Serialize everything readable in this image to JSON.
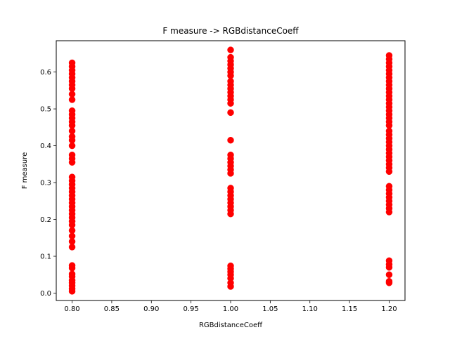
{
  "chart_data": {
    "type": "scatter",
    "title": "F measure -> RGBdistanceCoeff",
    "xlabel": "RGBdistanceCoeff",
    "ylabel": "F measure",
    "xlim": [
      0.78,
      1.22
    ],
    "ylim": [
      -0.02,
      0.685
    ],
    "x_ticks": [
      "0.80",
      "0.85",
      "0.90",
      "0.95",
      "1.00",
      "1.05",
      "1.10",
      "1.15",
      "1.20"
    ],
    "y_ticks": [
      "0.0",
      "0.1",
      "0.2",
      "0.3",
      "0.4",
      "0.5",
      "0.6"
    ],
    "grid": false,
    "marker_color": "#ff0000",
    "series": [
      {
        "points": [
          [
            0.8,
            0.005
          ],
          [
            0.8,
            0.012
          ],
          [
            0.8,
            0.02
          ],
          [
            0.8,
            0.028
          ],
          [
            0.8,
            0.035
          ],
          [
            0.8,
            0.045
          ],
          [
            0.8,
            0.052
          ],
          [
            0.8,
            0.068
          ],
          [
            0.8,
            0.075
          ],
          [
            0.8,
            0.125
          ],
          [
            0.8,
            0.14
          ],
          [
            0.8,
            0.155
          ],
          [
            0.8,
            0.17
          ],
          [
            0.8,
            0.185
          ],
          [
            0.8,
            0.195
          ],
          [
            0.8,
            0.205
          ],
          [
            0.8,
            0.215
          ],
          [
            0.8,
            0.225
          ],
          [
            0.8,
            0.235
          ],
          [
            0.8,
            0.245
          ],
          [
            0.8,
            0.255
          ],
          [
            0.8,
            0.265
          ],
          [
            0.8,
            0.275
          ],
          [
            0.8,
            0.285
          ],
          [
            0.8,
            0.295
          ],
          [
            0.8,
            0.305
          ],
          [
            0.8,
            0.315
          ],
          [
            0.8,
            0.355
          ],
          [
            0.8,
            0.365
          ],
          [
            0.8,
            0.375
          ],
          [
            0.8,
            0.4
          ],
          [
            0.8,
            0.415
          ],
          [
            0.8,
            0.425
          ],
          [
            0.8,
            0.44
          ],
          [
            0.8,
            0.455
          ],
          [
            0.8,
            0.465
          ],
          [
            0.8,
            0.475
          ],
          [
            0.8,
            0.485
          ],
          [
            0.8,
            0.495
          ],
          [
            0.8,
            0.525
          ],
          [
            0.8,
            0.54
          ],
          [
            0.8,
            0.555
          ],
          [
            0.8,
            0.565
          ],
          [
            0.8,
            0.575
          ],
          [
            0.8,
            0.585
          ],
          [
            0.8,
            0.595
          ],
          [
            0.8,
            0.605
          ],
          [
            0.8,
            0.615
          ],
          [
            0.8,
            0.625
          ],
          [
            1.0,
            0.018
          ],
          [
            1.0,
            0.028
          ],
          [
            1.0,
            0.04
          ],
          [
            1.0,
            0.05
          ],
          [
            1.0,
            0.058
          ],
          [
            1.0,
            0.066
          ],
          [
            1.0,
            0.074
          ],
          [
            1.0,
            0.215
          ],
          [
            1.0,
            0.225
          ],
          [
            1.0,
            0.235
          ],
          [
            1.0,
            0.245
          ],
          [
            1.0,
            0.255
          ],
          [
            1.0,
            0.265
          ],
          [
            1.0,
            0.275
          ],
          [
            1.0,
            0.285
          ],
          [
            1.0,
            0.325
          ],
          [
            1.0,
            0.335
          ],
          [
            1.0,
            0.345
          ],
          [
            1.0,
            0.355
          ],
          [
            1.0,
            0.365
          ],
          [
            1.0,
            0.375
          ],
          [
            1.0,
            0.415
          ],
          [
            1.0,
            0.49
          ],
          [
            1.0,
            0.515
          ],
          [
            1.0,
            0.525
          ],
          [
            1.0,
            0.535
          ],
          [
            1.0,
            0.545
          ],
          [
            1.0,
            0.555
          ],
          [
            1.0,
            0.565
          ],
          [
            1.0,
            0.575
          ],
          [
            1.0,
            0.59
          ],
          [
            1.0,
            0.6
          ],
          [
            1.0,
            0.61
          ],
          [
            1.0,
            0.62
          ],
          [
            1.0,
            0.63
          ],
          [
            1.0,
            0.64
          ],
          [
            1.0,
            0.66
          ],
          [
            1.2,
            0.028
          ],
          [
            1.2,
            0.032
          ],
          [
            1.2,
            0.05
          ],
          [
            1.2,
            0.07
          ],
          [
            1.2,
            0.078
          ],
          [
            1.2,
            0.088
          ],
          [
            1.2,
            0.22
          ],
          [
            1.2,
            0.23
          ],
          [
            1.2,
            0.24
          ],
          [
            1.2,
            0.25
          ],
          [
            1.2,
            0.26
          ],
          [
            1.2,
            0.27
          ],
          [
            1.2,
            0.28
          ],
          [
            1.2,
            0.29
          ],
          [
            1.2,
            0.33
          ],
          [
            1.2,
            0.34
          ],
          [
            1.2,
            0.35
          ],
          [
            1.2,
            0.36
          ],
          [
            1.2,
            0.37
          ],
          [
            1.2,
            0.38
          ],
          [
            1.2,
            0.39
          ],
          [
            1.2,
            0.4
          ],
          [
            1.2,
            0.41
          ],
          [
            1.2,
            0.42
          ],
          [
            1.2,
            0.43
          ],
          [
            1.2,
            0.44
          ],
          [
            1.2,
            0.455
          ],
          [
            1.2,
            0.465
          ],
          [
            1.2,
            0.475
          ],
          [
            1.2,
            0.485
          ],
          [
            1.2,
            0.495
          ],
          [
            1.2,
            0.505
          ],
          [
            1.2,
            0.515
          ],
          [
            1.2,
            0.525
          ],
          [
            1.2,
            0.535
          ],
          [
            1.2,
            0.545
          ],
          [
            1.2,
            0.555
          ],
          [
            1.2,
            0.565
          ],
          [
            1.2,
            0.575
          ],
          [
            1.2,
            0.585
          ],
          [
            1.2,
            0.595
          ],
          [
            1.2,
            0.605
          ],
          [
            1.2,
            0.615
          ],
          [
            1.2,
            0.625
          ],
          [
            1.2,
            0.635
          ],
          [
            1.2,
            0.645
          ]
        ]
      }
    ]
  }
}
